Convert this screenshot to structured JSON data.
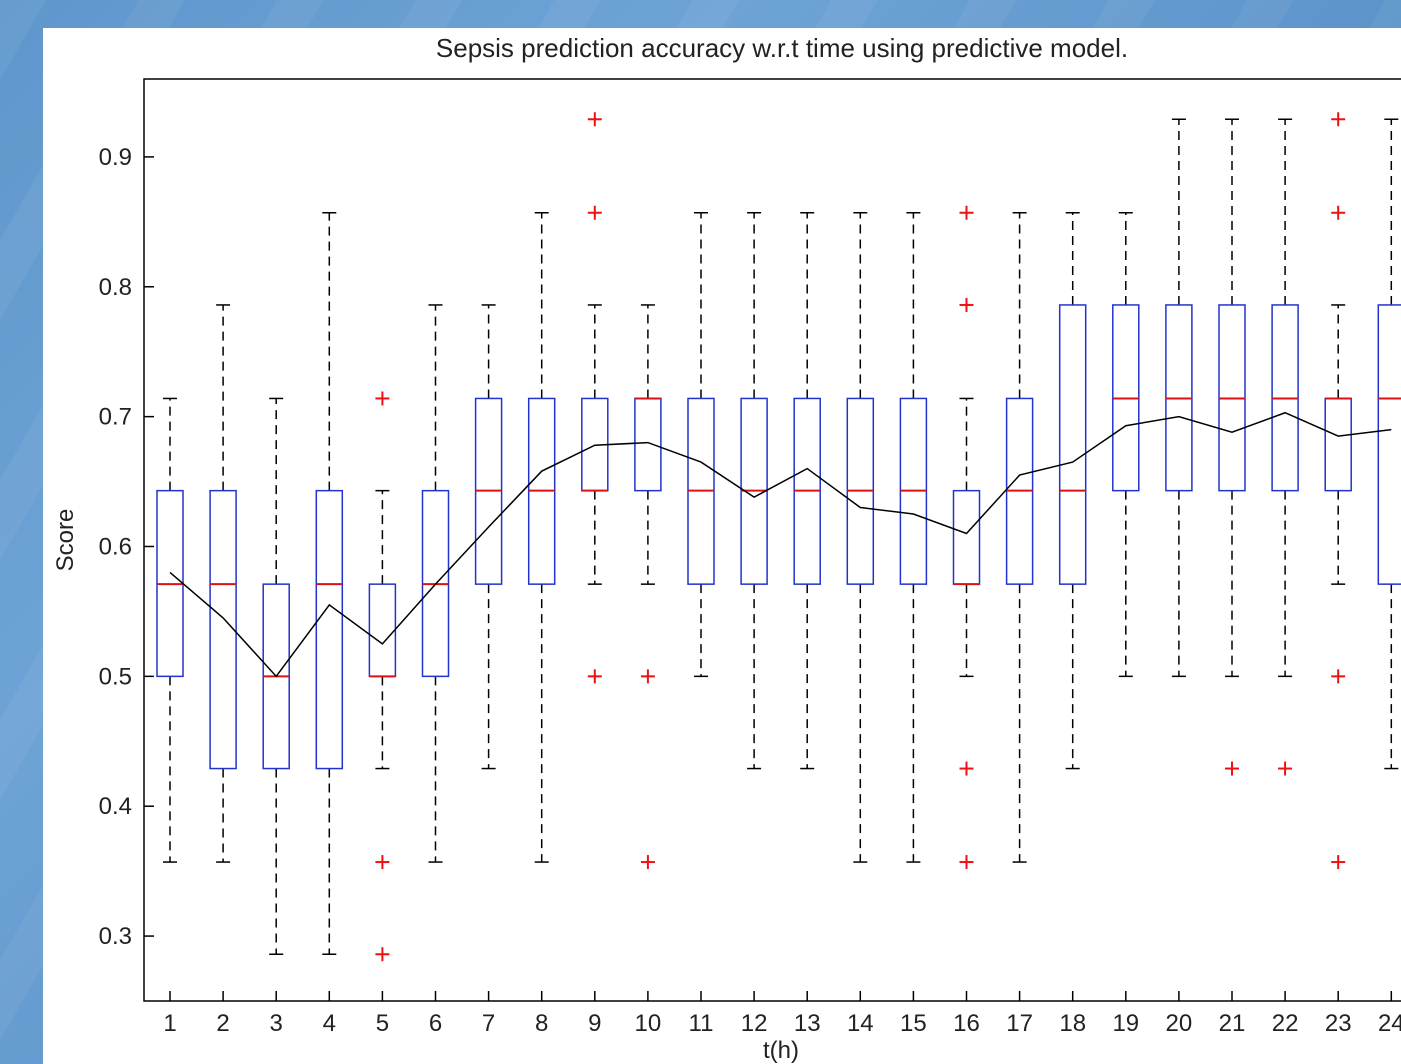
{
  "chart_data": {
    "type": "boxplot",
    "title": "Sepsis prediction accuracy w.r.t time using predictive model.",
    "xlabel": "t(h)",
    "ylabel": "Score",
    "ylim": [
      0.25,
      0.96
    ],
    "yticks": [
      "0.3",
      "0.4",
      "0.5",
      "0.6",
      "0.7",
      "0.8",
      "0.9"
    ],
    "categories": [
      "1",
      "2",
      "3",
      "4",
      "5",
      "6",
      "7",
      "8",
      "9",
      "10",
      "11",
      "12",
      "13",
      "14",
      "15",
      "16",
      "17",
      "18",
      "19",
      "20",
      "21",
      "22",
      "23",
      "24"
    ],
    "grid": false,
    "colors": {
      "box": "#2233cc",
      "median": "#dd1111",
      "outlier": "#ee1111",
      "whisker": "#000000",
      "mean_line": "#000000"
    },
    "boxes": [
      {
        "t": 1,
        "whisker_low": 0.357,
        "q1": 0.5,
        "median": 0.571,
        "q3": 0.643,
        "whisker_high": 0.714,
        "outliers": []
      },
      {
        "t": 2,
        "whisker_low": 0.357,
        "q1": 0.429,
        "median": 0.571,
        "q3": 0.643,
        "whisker_high": 0.786,
        "outliers": []
      },
      {
        "t": 3,
        "whisker_low": 0.286,
        "q1": 0.429,
        "median": 0.5,
        "q3": 0.571,
        "whisker_high": 0.714,
        "outliers": []
      },
      {
        "t": 4,
        "whisker_low": 0.286,
        "q1": 0.429,
        "median": 0.571,
        "q3": 0.643,
        "whisker_high": 0.857,
        "outliers": []
      },
      {
        "t": 5,
        "whisker_low": 0.429,
        "q1": 0.5,
        "median": 0.5,
        "q3": 0.571,
        "whisker_high": 0.643,
        "outliers": [
          0.714,
          0.357,
          0.286
        ]
      },
      {
        "t": 6,
        "whisker_low": 0.357,
        "q1": 0.5,
        "median": 0.571,
        "q3": 0.643,
        "whisker_high": 0.786,
        "outliers": []
      },
      {
        "t": 7,
        "whisker_low": 0.429,
        "q1": 0.571,
        "median": 0.643,
        "q3": 0.714,
        "whisker_high": 0.786,
        "outliers": []
      },
      {
        "t": 8,
        "whisker_low": 0.357,
        "q1": 0.571,
        "median": 0.643,
        "q3": 0.714,
        "whisker_high": 0.857,
        "outliers": []
      },
      {
        "t": 9,
        "whisker_low": 0.571,
        "q1": 0.643,
        "median": 0.643,
        "q3": 0.714,
        "whisker_high": 0.786,
        "outliers": [
          0.929,
          0.857,
          0.5
        ]
      },
      {
        "t": 10,
        "whisker_low": 0.571,
        "q1": 0.643,
        "median": 0.714,
        "q3": 0.714,
        "whisker_high": 0.786,
        "outliers": [
          0.5,
          0.357
        ]
      },
      {
        "t": 11,
        "whisker_low": 0.5,
        "q1": 0.571,
        "median": 0.643,
        "q3": 0.714,
        "whisker_high": 0.857,
        "outliers": []
      },
      {
        "t": 12,
        "whisker_low": 0.429,
        "q1": 0.571,
        "median": 0.643,
        "q3": 0.714,
        "whisker_high": 0.857,
        "outliers": []
      },
      {
        "t": 13,
        "whisker_low": 0.429,
        "q1": 0.571,
        "median": 0.643,
        "q3": 0.714,
        "whisker_high": 0.857,
        "outliers": []
      },
      {
        "t": 14,
        "whisker_low": 0.357,
        "q1": 0.571,
        "median": 0.643,
        "q3": 0.714,
        "whisker_high": 0.857,
        "outliers": []
      },
      {
        "t": 15,
        "whisker_low": 0.357,
        "q1": 0.571,
        "median": 0.643,
        "q3": 0.714,
        "whisker_high": 0.857,
        "outliers": []
      },
      {
        "t": 16,
        "whisker_low": 0.5,
        "q1": 0.571,
        "median": 0.571,
        "q3": 0.643,
        "whisker_high": 0.714,
        "outliers": [
          0.857,
          0.786,
          0.429,
          0.357
        ]
      },
      {
        "t": 17,
        "whisker_low": 0.357,
        "q1": 0.571,
        "median": 0.643,
        "q3": 0.714,
        "whisker_high": 0.857,
        "outliers": []
      },
      {
        "t": 18,
        "whisker_low": 0.429,
        "q1": 0.571,
        "median": 0.643,
        "q3": 0.786,
        "whisker_high": 0.857,
        "outliers": []
      },
      {
        "t": 19,
        "whisker_low": 0.5,
        "q1": 0.643,
        "median": 0.714,
        "q3": 0.786,
        "whisker_high": 0.857,
        "outliers": []
      },
      {
        "t": 20,
        "whisker_low": 0.5,
        "q1": 0.643,
        "median": 0.714,
        "q3": 0.786,
        "whisker_high": 0.929,
        "outliers": []
      },
      {
        "t": 21,
        "whisker_low": 0.5,
        "q1": 0.643,
        "median": 0.714,
        "q3": 0.786,
        "whisker_high": 0.929,
        "outliers": [
          0.429
        ]
      },
      {
        "t": 22,
        "whisker_low": 0.5,
        "q1": 0.643,
        "median": 0.714,
        "q3": 0.786,
        "whisker_high": 0.929,
        "outliers": [
          0.429
        ]
      },
      {
        "t": 23,
        "whisker_low": 0.571,
        "q1": 0.643,
        "median": 0.714,
        "q3": 0.714,
        "whisker_high": 0.786,
        "outliers": [
          0.929,
          0.857,
          0.5,
          0.357
        ]
      },
      {
        "t": 24,
        "whisker_low": 0.429,
        "q1": 0.571,
        "median": 0.714,
        "q3": 0.786,
        "whisker_high": 0.929,
        "outliers": []
      }
    ],
    "mean_line": [
      0.58,
      0.545,
      0.5,
      0.555,
      0.525,
      0.571,
      0.615,
      0.658,
      0.678,
      0.68,
      0.665,
      0.638,
      0.66,
      0.63,
      0.625,
      0.61,
      0.655,
      0.665,
      0.693,
      0.7,
      0.688,
      0.703,
      0.685,
      0.69
    ]
  }
}
